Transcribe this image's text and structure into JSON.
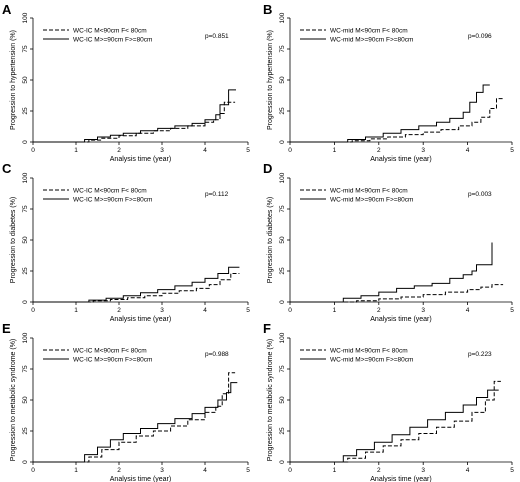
{
  "chart_data": [
    {
      "type": "line",
      "panel_label": "A",
      "xlabel": "Analysis time (year)",
      "ylabel": "Progression to hypertension (%)",
      "xlim": [
        0,
        5
      ],
      "ylim": [
        0,
        100
      ],
      "xticks": [
        "0",
        "1",
        "2",
        "3",
        "4",
        "5"
      ],
      "yticks": [
        "0",
        "25",
        "50",
        "75",
        "100"
      ],
      "legend": "top-left",
      "p_value": "p=0.851",
      "series": [
        {
          "name": "WC-IC M<90cm F< 80cm",
          "dash": "dashed",
          "x": [
            0,
            1.0,
            1.3,
            1.6,
            2.0,
            2.4,
            2.8,
            3.2,
            3.6,
            4.0,
            4.2,
            4.35,
            4.45,
            4.7
          ],
          "y": [
            0,
            0,
            1.5,
            3,
            5,
            7,
            9,
            11,
            13,
            16,
            18,
            23,
            32,
            32
          ]
        },
        {
          "name": "WC-IC M>=90cm F>=80cm",
          "dash": "solid",
          "x": [
            0,
            1.0,
            1.2,
            1.5,
            1.8,
            2.1,
            2.5,
            2.9,
            3.3,
            3.7,
            4.0,
            4.25,
            4.35,
            4.55,
            4.72
          ],
          "y": [
            0,
            0,
            2,
            4,
            5.5,
            7,
            9,
            11,
            13,
            15,
            18,
            22,
            30,
            42,
            42
          ]
        }
      ]
    },
    {
      "type": "line",
      "panel_label": "B",
      "xlabel": "Analysis time (year)",
      "ylabel": "Progression to hypertension (%)",
      "xlim": [
        0,
        5
      ],
      "ylim": [
        0,
        100
      ],
      "xticks": [
        "0",
        "1",
        "2",
        "3",
        "4",
        "5"
      ],
      "yticks": [
        "0",
        "25",
        "50",
        "75",
        "100"
      ],
      "legend": "top-left",
      "p_value": "p=0.096",
      "series": [
        {
          "name": "WC-mid M<90cm F< 80cm",
          "dash": "dashed",
          "x": [
            0,
            1.0,
            1.4,
            1.8,
            2.2,
            2.6,
            3.0,
            3.4,
            3.8,
            4.1,
            4.3,
            4.5,
            4.65,
            4.8
          ],
          "y": [
            0,
            0,
            1,
            2.5,
            4,
            6,
            8,
            10,
            13,
            16,
            20,
            27,
            35,
            35
          ]
        },
        {
          "name": "WC-mid M>=90cm F>=80cm",
          "dash": "solid",
          "x": [
            0,
            1.0,
            1.3,
            1.7,
            2.1,
            2.5,
            2.9,
            3.3,
            3.6,
            3.9,
            4.05,
            4.2,
            4.35,
            4.5
          ],
          "y": [
            0,
            0,
            2,
            4,
            7,
            10,
            13,
            16,
            19,
            24,
            32,
            40,
            46,
            46
          ]
        }
      ]
    },
    {
      "type": "line",
      "panel_label": "C",
      "xlabel": "Analysis time (year)",
      "ylabel": "Progression to diabetes (%)",
      "xlim": [
        0,
        5
      ],
      "ylim": [
        0,
        100
      ],
      "xticks": [
        "0",
        "1",
        "2",
        "3",
        "4",
        "5"
      ],
      "yticks": [
        "0",
        "25",
        "50",
        "75",
        "100"
      ],
      "legend": "top-left",
      "p_value": "p=0.112",
      "series": [
        {
          "name": "WC-IC M<90cm F< 80cm",
          "dash": "dashed",
          "x": [
            0,
            1.0,
            1.4,
            1.8,
            2.2,
            2.6,
            3.0,
            3.4,
            3.8,
            4.1,
            4.35,
            4.6,
            4.8
          ],
          "y": [
            0,
            0,
            1,
            2,
            3.5,
            5,
            7,
            9,
            11,
            14,
            18,
            23,
            23
          ]
        },
        {
          "name": "WC-IC M>=90cm F>=80cm",
          "dash": "solid",
          "x": [
            0,
            1.0,
            1.3,
            1.7,
            2.1,
            2.5,
            2.9,
            3.3,
            3.7,
            4.0,
            4.3,
            4.55,
            4.8
          ],
          "y": [
            0,
            0,
            1.5,
            3,
            5,
            7.5,
            10,
            13,
            16,
            19,
            23,
            28,
            28
          ]
        }
      ]
    },
    {
      "type": "line",
      "panel_label": "D",
      "xlabel": "Analysis time (year)",
      "ylabel": "Progression to diabetes (%)",
      "xlim": [
        0,
        5
      ],
      "ylim": [
        0,
        100
      ],
      "xticks": [
        "0",
        "1",
        "2",
        "3",
        "4",
        "5"
      ],
      "yticks": [
        "0",
        "25",
        "50",
        "75",
        "100"
      ],
      "legend": "top-left",
      "p_value": "p=0.003",
      "series": [
        {
          "name": "WC-mid M<90cm F< 80cm",
          "dash": "dashed",
          "x": [
            0,
            1.0,
            1.5,
            2.0,
            2.5,
            3.0,
            3.5,
            4.0,
            4.3,
            4.55,
            4.8
          ],
          "y": [
            0,
            0,
            1,
            2.5,
            4,
            6,
            8,
            10,
            12,
            14,
            14
          ]
        },
        {
          "name": "WC-mid M>=90cm F>=80cm",
          "dash": "solid",
          "x": [
            0,
            1.0,
            1.2,
            1.6,
            2.0,
            2.4,
            2.8,
            3.2,
            3.6,
            3.9,
            4.1,
            4.2,
            4.5,
            4.55
          ],
          "y": [
            0,
            0,
            3,
            5,
            8,
            11,
            13,
            15,
            19,
            22,
            25,
            30,
            30,
            48
          ]
        }
      ]
    },
    {
      "type": "line",
      "panel_label": "E",
      "xlabel": "Analysis time (year)",
      "ylabel": "Progression to metabolic syndrome (%)",
      "xlim": [
        0,
        5
      ],
      "ylim": [
        0,
        100
      ],
      "xticks": [
        "0",
        "1",
        "2",
        "3",
        "4",
        "5"
      ],
      "yticks": [
        "0",
        "25",
        "50",
        "75",
        "100"
      ],
      "legend": "top-left",
      "p_value": "p=0.988",
      "series": [
        {
          "name": "WC-IC M<90cm F< 80cm",
          "dash": "dashed",
          "x": [
            0,
            1.0,
            1.3,
            1.6,
            2.0,
            2.4,
            2.8,
            3.2,
            3.6,
            4.0,
            4.25,
            4.4,
            4.55,
            4.7
          ],
          "y": [
            0,
            0,
            4,
            10,
            16,
            21,
            25,
            29,
            34,
            40,
            45,
            55,
            72,
            72
          ]
        },
        {
          "name": "WC-IC M>=90cm F>=80cm",
          "dash": "solid",
          "x": [
            0,
            1.0,
            1.2,
            1.5,
            1.8,
            2.1,
            2.5,
            2.9,
            3.3,
            3.7,
            4.0,
            4.3,
            4.5,
            4.6,
            4.75
          ],
          "y": [
            0,
            0,
            6,
            12,
            18,
            23,
            27,
            31,
            35,
            39,
            44,
            50,
            56,
            64,
            64
          ]
        }
      ]
    },
    {
      "type": "line",
      "panel_label": "F",
      "xlabel": "Analysis time (year)",
      "ylabel": "Progression to metabolic syndrome (%)",
      "xlim": [
        0,
        5
      ],
      "ylim": [
        0,
        100
      ],
      "xticks": [
        "0",
        "1",
        "2",
        "3",
        "4",
        "5"
      ],
      "yticks": [
        "0",
        "25",
        "50",
        "75",
        "100"
      ],
      "legend": "top-left",
      "p_value": "p=0.223",
      "series": [
        {
          "name": "WC-mid M<90cm F< 80cm",
          "dash": "dashed",
          "x": [
            0,
            1.0,
            1.3,
            1.7,
            2.1,
            2.5,
            2.9,
            3.3,
            3.7,
            4.1,
            4.4,
            4.6,
            4.75
          ],
          "y": [
            0,
            0,
            3,
            8,
            13,
            18,
            23,
            28,
            33,
            40,
            50,
            65,
            65
          ]
        },
        {
          "name": "WC-mid M>=90cm F>=80cm",
          "dash": "solid",
          "x": [
            0,
            1.0,
            1.2,
            1.5,
            1.9,
            2.3,
            2.7,
            3.1,
            3.5,
            3.9,
            4.2,
            4.45,
            4.7
          ],
          "y": [
            0,
            0,
            5,
            10,
            16,
            22,
            28,
            34,
            40,
            46,
            52,
            58,
            58
          ]
        }
      ]
    }
  ]
}
